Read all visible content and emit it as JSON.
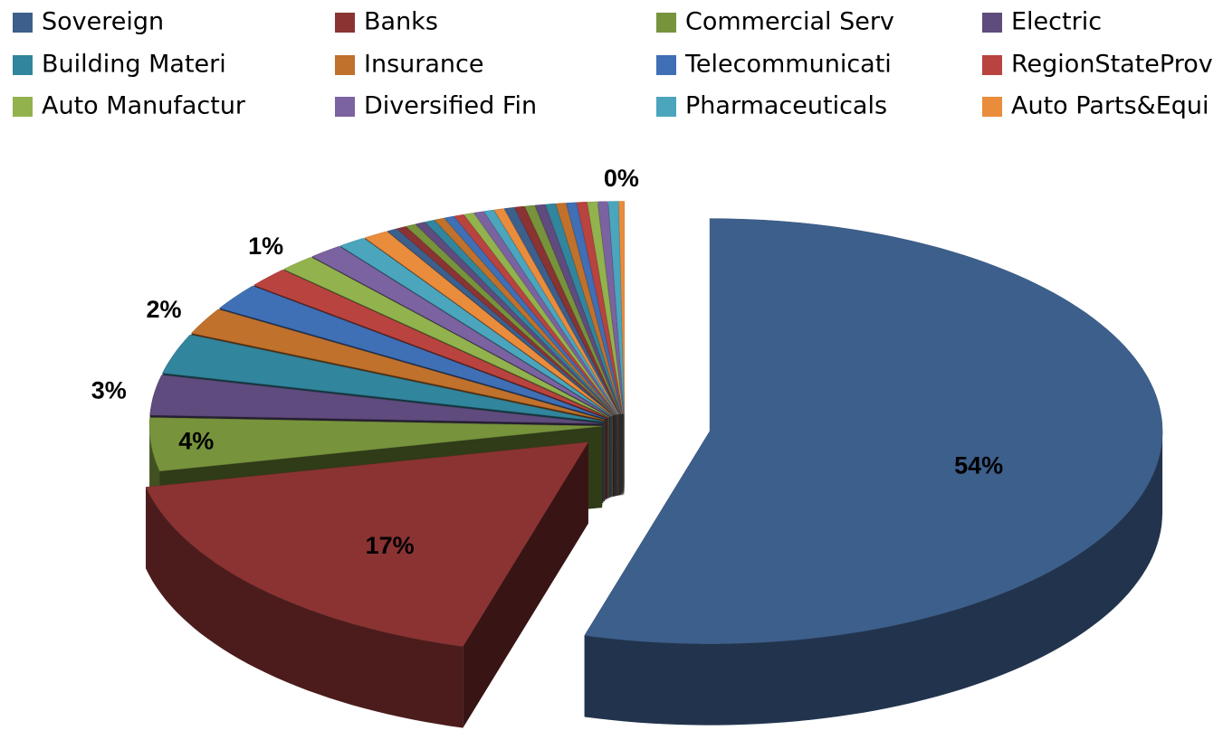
{
  "chart_data": {
    "type": "pie",
    "categories": [
      "Sovereign",
      "Banks",
      "Commercial Serv",
      "Electric",
      "Building Materi",
      "Insurance",
      "Telecommunicati",
      "RegionStateProv",
      "Auto Manufactur",
      "Diversified Fin",
      "Pharmaceuticals",
      "Auto Parts&Equi",
      null,
      null,
      null,
      null,
      null,
      null,
      null,
      null,
      null,
      null,
      null,
      null,
      null,
      null,
      null,
      null,
      null,
      null,
      null,
      null,
      null,
      null,
      null,
      null
    ],
    "values": [
      54,
      17,
      4,
      3,
      3,
      2,
      2,
      1.5,
      1.3,
      1.2,
      1,
      0.9,
      0.35,
      0.35,
      0.35,
      0.35,
      0.35,
      0.35,
      0.35,
      0.35,
      0.35,
      0.35,
      0.35,
      0.35,
      0.35,
      0.35,
      0.35,
      0.35,
      0.35,
      0.35,
      0.35,
      0.35,
      0.35,
      0.35,
      0.35,
      0.2
    ],
    "value_labels": [
      "54%",
      "17%",
      "4%",
      "3%",
      null,
      "2%",
      null,
      null,
      "1%",
      null,
      null,
      null,
      null,
      null,
      null,
      null,
      null,
      null,
      null,
      null,
      null,
      null,
      null,
      null,
      null,
      null,
      null,
      null,
      null,
      null,
      null,
      null,
      null,
      null,
      null,
      "0%"
    ],
    "colors": [
      "#3d5f8c",
      "#8b3333",
      "#77933c",
      "#5f4b7d",
      "#31859c",
      "#c0712c",
      "#3f6fb5",
      "#b9433f",
      "#92b24e",
      "#7b62a0",
      "#4aa5bd",
      "#e98c3c"
    ],
    "legend": "top"
  }
}
